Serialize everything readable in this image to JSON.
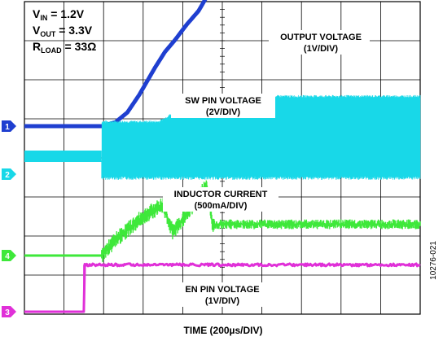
{
  "chart_data": {
    "type": "line",
    "title": "",
    "conditions": {
      "vin": {
        "sym": "V",
        "sub": "IN",
        "text": " = 1.2V"
      },
      "vout": {
        "sym": "V",
        "sub": "OUT",
        "text": " = 3.3V"
      },
      "rload": {
        "sym": "R",
        "sub": "LOAD",
        "text": " = 33Ω"
      }
    },
    "xlabel": "TIME (200µs/DIV)",
    "x_divisions": 10,
    "y_divisions": 8,
    "series": [
      {
        "name": "OUTPUT VOLTAGE",
        "scale": "(1V/DIV)",
        "channel": "1",
        "color": "#1f3fd0",
        "unit": "V",
        "points": [
          [
            0,
            0
          ],
          [
            1.95,
            0
          ],
          [
            2.3,
            0.1
          ],
          [
            2.6,
            0.35
          ],
          [
            2.9,
            0.8
          ],
          [
            3.3,
            1.5
          ],
          [
            3.55,
            1.9
          ],
          [
            3.8,
            2.2
          ],
          [
            4.1,
            2.6
          ],
          [
            4.4,
            2.95
          ],
          [
            4.6,
            3.3
          ],
          [
            10,
            3.3
          ]
        ]
      },
      {
        "name": "SW PIN VOLTAGE",
        "scale": "(2V/DIV)",
        "channel": "2",
        "color": "#18d8e8",
        "unit": "V",
        "idle_level": 1.2,
        "points": [
          [
            0,
            0
          ],
          [
            1.95,
            0
          ],
          [
            1.95,
            2.0
          ],
          [
            3.4,
            2.0
          ],
          [
            3.8,
            2.5
          ],
          [
            4.5,
            3.3
          ],
          [
            10,
            3.3
          ]
        ]
      },
      {
        "name": "INDUCTOR CURRENT",
        "scale": "(500mA/DIV)",
        "channel": "4",
        "color": "#3ee83a",
        "unit": "mA",
        "points": [
          [
            0,
            0
          ],
          [
            1.95,
            0
          ],
          [
            2.3,
            200
          ],
          [
            3.0,
            500
          ],
          [
            3.5,
            650
          ],
          [
            3.75,
            300
          ],
          [
            4.2,
            600
          ],
          [
            4.6,
            900
          ],
          [
            4.75,
            400
          ],
          [
            10,
            400
          ]
        ]
      },
      {
        "name": "EN PIN VOLTAGE",
        "scale": "(1V/DIV)",
        "channel": "3",
        "color": "#e030d8",
        "unit": "V",
        "points": [
          [
            0,
            0
          ],
          [
            1.5,
            0
          ],
          [
            1.5,
            1.2
          ],
          [
            10,
            1.2
          ]
        ]
      }
    ]
  },
  "figure_id": "10276-021"
}
